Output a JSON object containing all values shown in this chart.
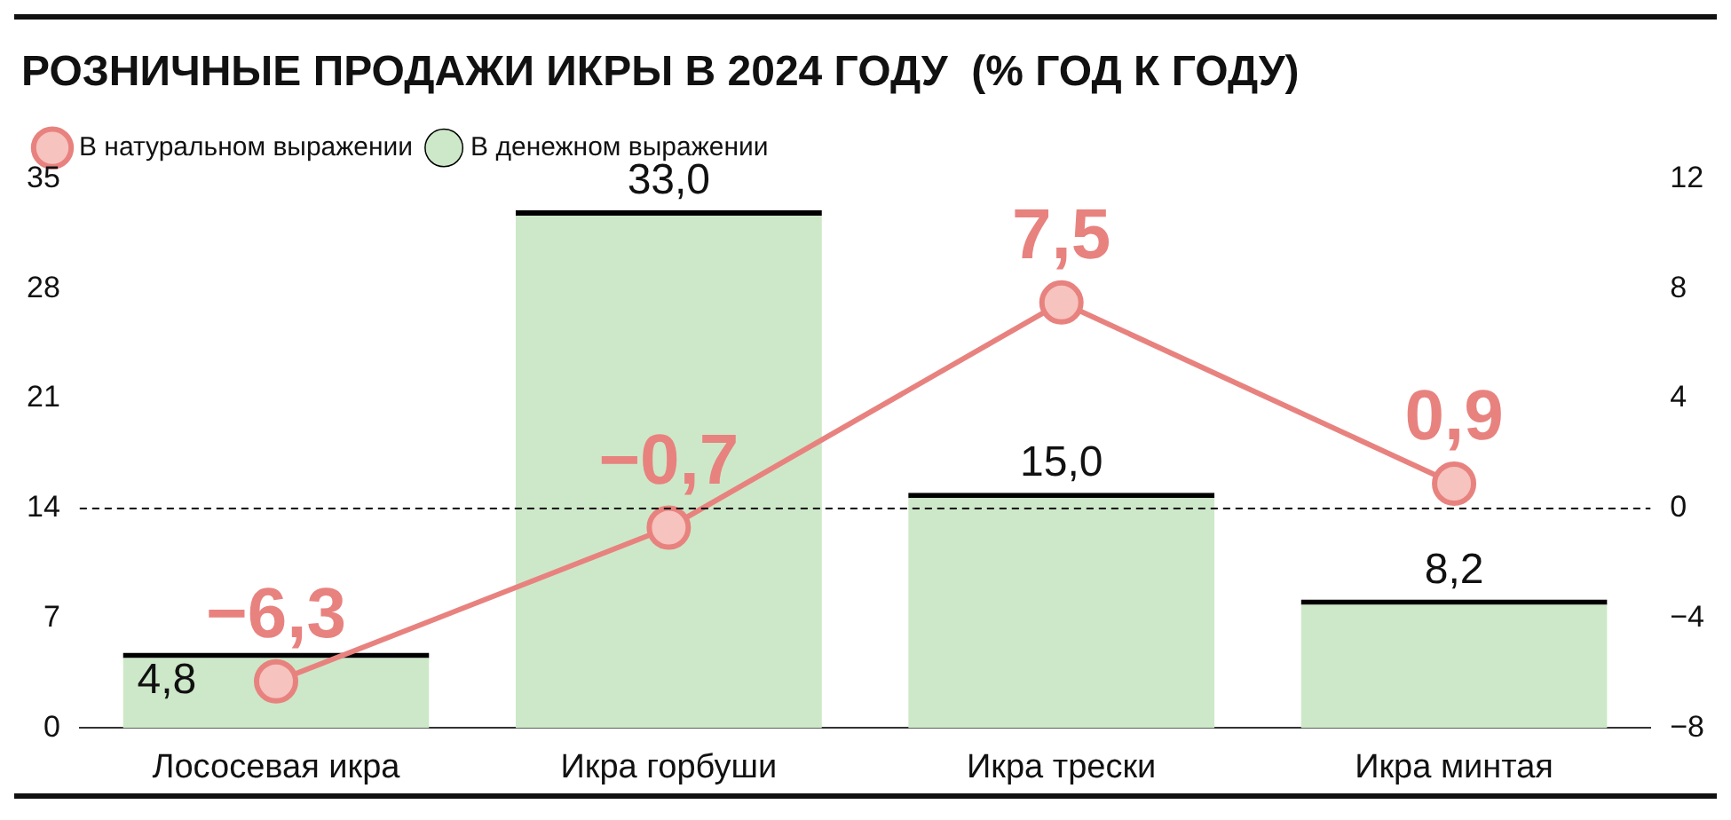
{
  "chart_data": {
    "type": "bar",
    "title": "РОЗНИЧНЫЕ ПРОДАЖИ ИКРЫ В 2024 ГОДУ  (% ГОД К ГОДУ)",
    "categories": [
      "Лососевая икра",
      "Икра горбуши",
      "Икра трески",
      "Икра минтая"
    ],
    "series": [
      {
        "name": "В денежном выражении",
        "color": "#cde8c8",
        "values": [
          4.8,
          33.0,
          15.0,
          8.2
        ],
        "value_labels": [
          "4,8",
          "33,0",
          "15,0",
          "8,2"
        ]
      },
      {
        "name": "В натуральном выражении",
        "type": "line",
        "axis": "y2",
        "color": "#e8827f",
        "values": [
          -6.3,
          -0.7,
          7.5,
          0.9
        ],
        "value_labels": [
          "−6,3",
          "−0,7",
          "7,5",
          "0,9"
        ]
      }
    ],
    "ylim": [
      0,
      35
    ],
    "yticks": [
      0,
      7,
      14,
      21,
      28,
      35
    ],
    "y2lim": [
      -8,
      12
    ],
    "y2ticks": [
      {
        "value": -8,
        "label": "−8"
      },
      {
        "value": -4,
        "label": "−4"
      },
      0,
      4,
      8,
      12
    ],
    "ref_lines": [
      {
        "axis": "y2",
        "value": 0,
        "color": "#000000",
        "line_style": "dashed"
      }
    ],
    "grid": false,
    "legend": "top",
    "marker": "circle"
  }
}
